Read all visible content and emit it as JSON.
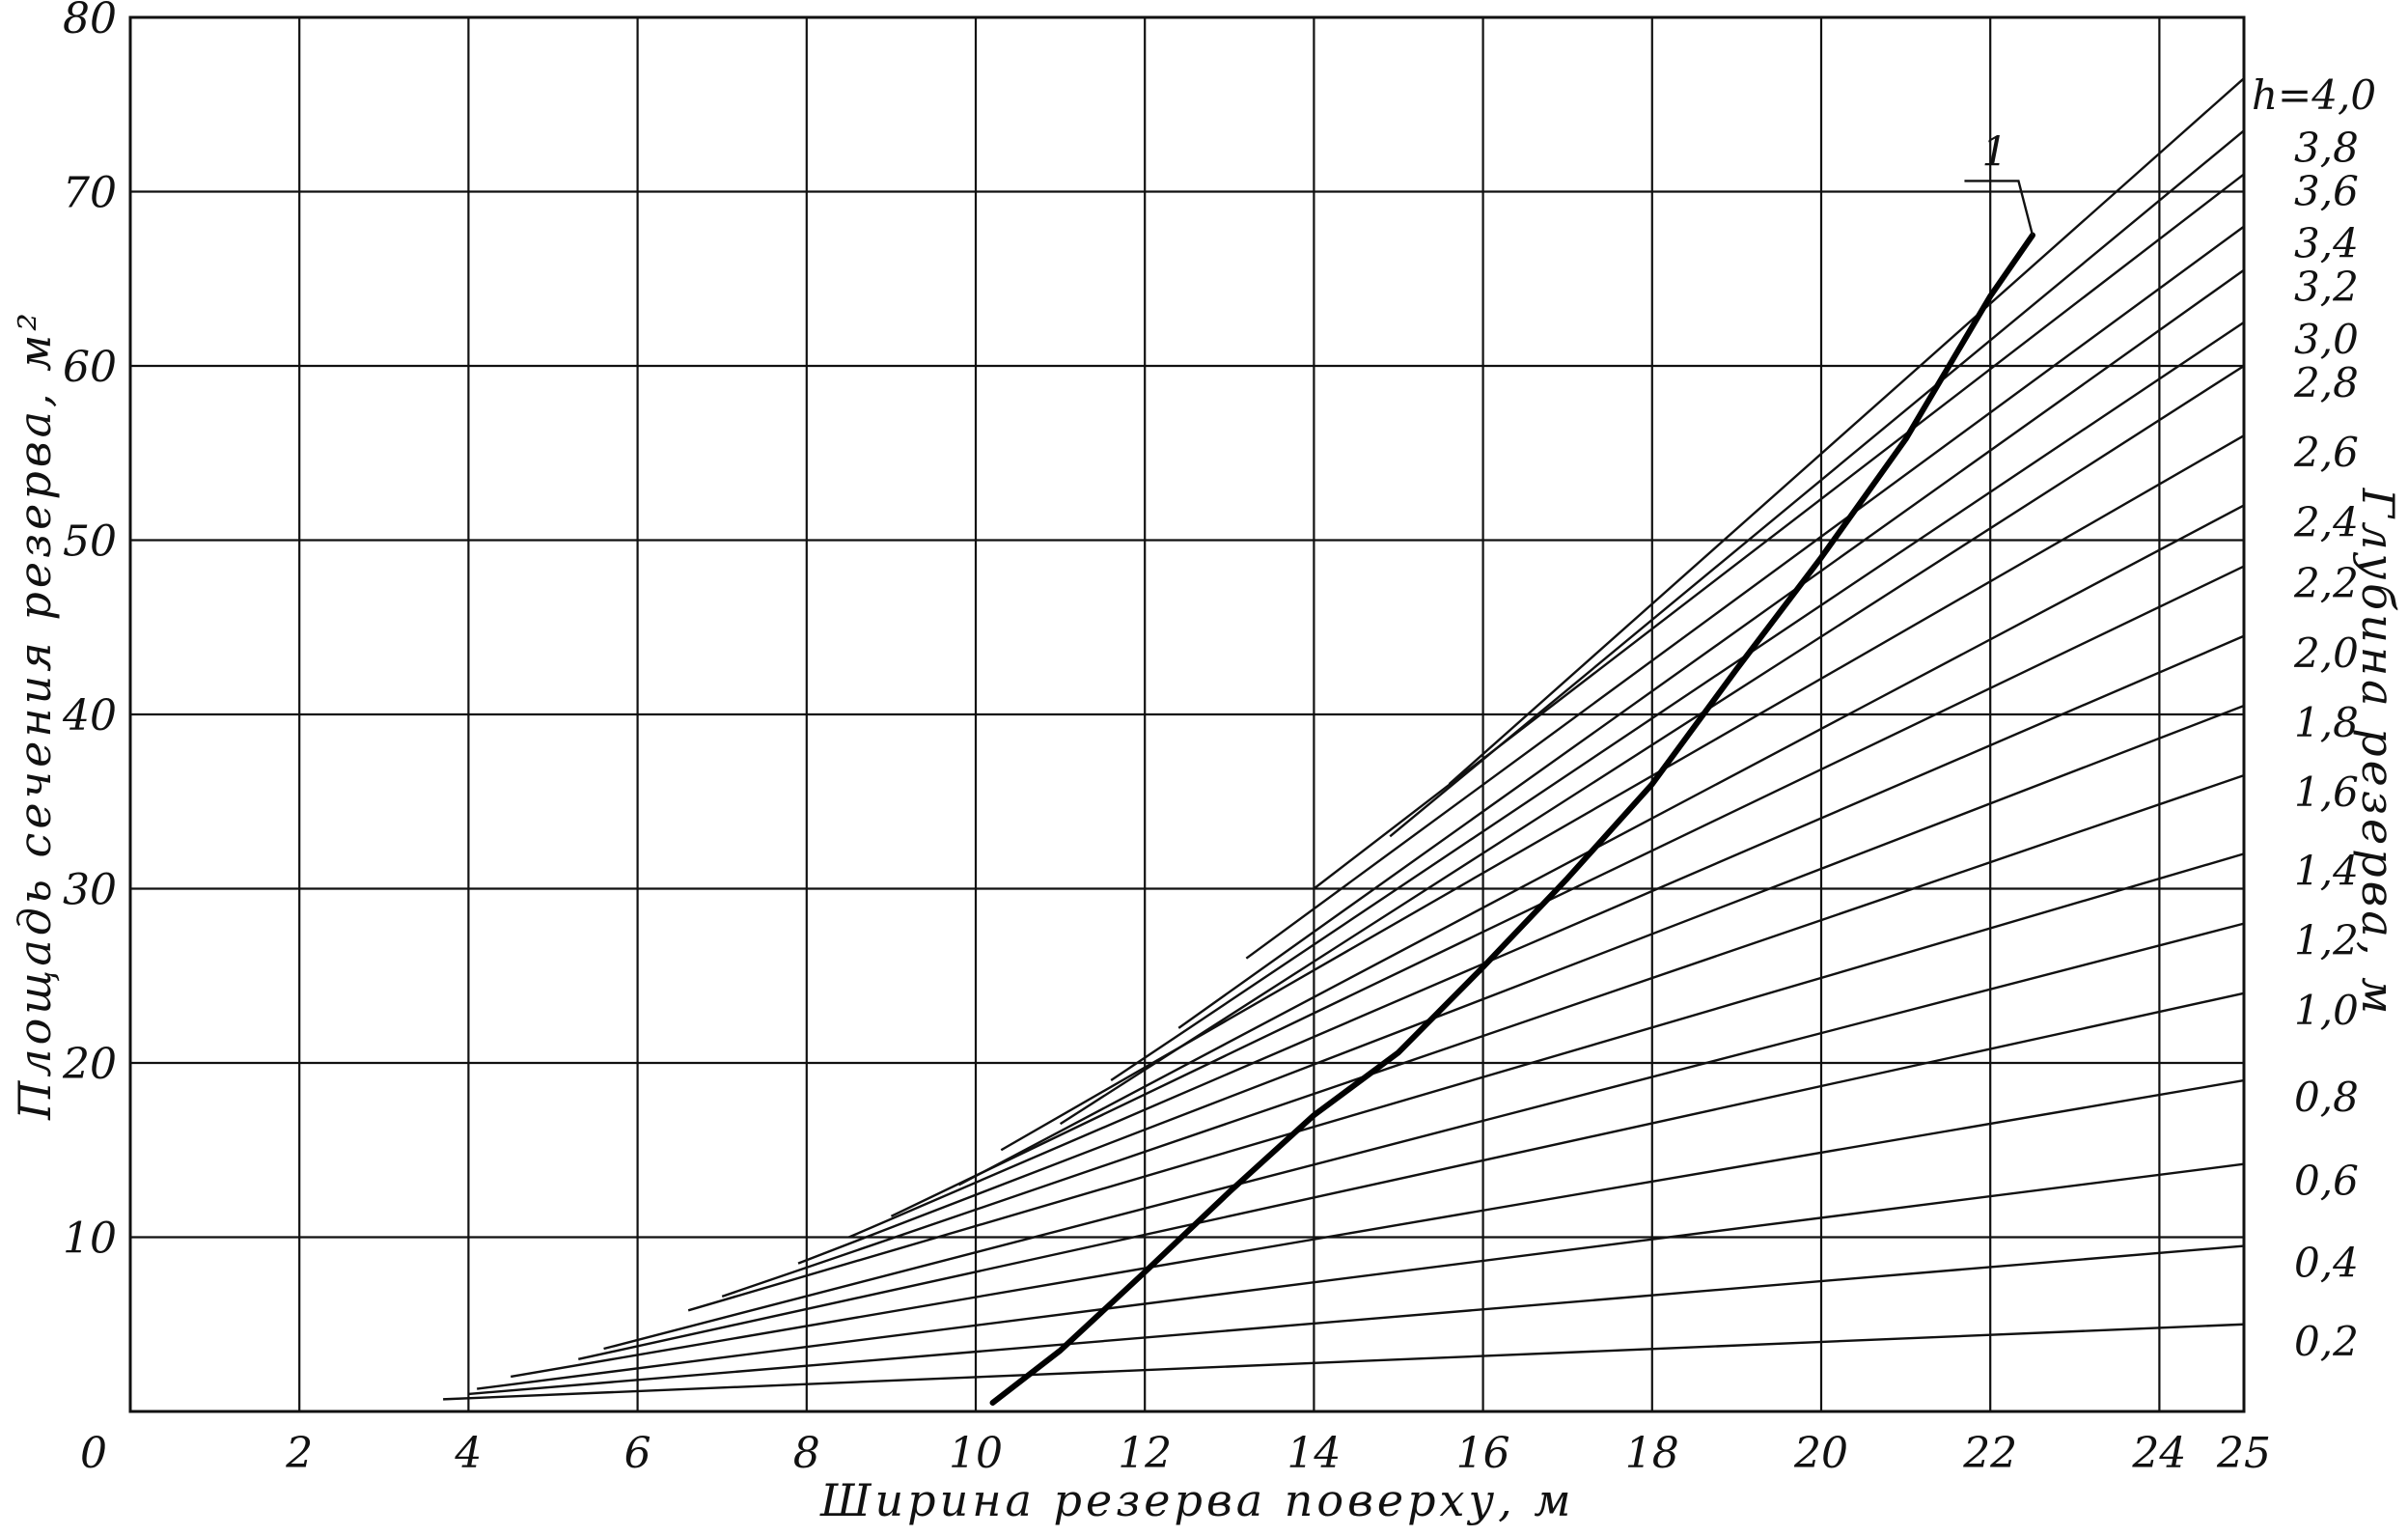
{
  "chart_data": {
    "type": "line",
    "xlabel": "Ширина резерва поверху, м",
    "ylabel": "Площадь сечения резерва, м²",
    "y2label": "Глубина резерва, м",
    "xlim": [
      0,
      25
    ],
    "ylim": [
      0,
      80
    ],
    "x_ticks": [
      0,
      2,
      4,
      6,
      8,
      10,
      12,
      14,
      16,
      18,
      20,
      22,
      24,
      25
    ],
    "x_tick_labels": [
      "0",
      "2",
      "4",
      "6",
      "8",
      "10",
      "12",
      "14",
      "16",
      "18",
      "20",
      "22",
      "24",
      "25"
    ],
    "y_ticks": [
      10,
      20,
      30,
      40,
      50,
      60,
      70,
      80
    ],
    "y_tick_labels": [
      "10",
      "20",
      "30",
      "40",
      "50",
      "60",
      "70",
      "80"
    ],
    "grid": true,
    "series": [
      {
        "name": "0,2",
        "h": 0.2,
        "points": [
          [
            3.7,
            0.7
          ],
          [
            25,
            5.0
          ]
        ]
      },
      {
        "name": "0,4",
        "h": 0.4,
        "points": [
          [
            4.0,
            1.0
          ],
          [
            25,
            9.5
          ]
        ]
      },
      {
        "name": "0,6",
        "h": 0.6,
        "points": [
          [
            4.1,
            1.3
          ],
          [
            25,
            14.2
          ]
        ]
      },
      {
        "name": "0,8",
        "h": 0.8,
        "points": [
          [
            4.5,
            2.0
          ],
          [
            25,
            19.0
          ]
        ]
      },
      {
        "name": "1,0",
        "h": 1.0,
        "points": [
          [
            5.3,
            3.0
          ],
          [
            25,
            24.0
          ]
        ]
      },
      {
        "name": "1,2",
        "h": 1.2,
        "points": [
          [
            5.6,
            3.6
          ],
          [
            25,
            28.0
          ]
        ]
      },
      {
        "name": "1,4",
        "h": 1.4,
        "points": [
          [
            6.6,
            5.8
          ],
          [
            25,
            32.0
          ]
        ]
      },
      {
        "name": "1,6",
        "h": 1.6,
        "points": [
          [
            7.0,
            6.6
          ],
          [
            25,
            36.5
          ]
        ]
      },
      {
        "name": "1,8",
        "h": 1.8,
        "points": [
          [
            7.9,
            8.5
          ],
          [
            25,
            40.5
          ]
        ]
      },
      {
        "name": "2,0",
        "h": 2.0,
        "points": [
          [
            8.5,
            10.0
          ],
          [
            25,
            44.5
          ]
        ]
      },
      {
        "name": "2,2",
        "h": 2.2,
        "points": [
          [
            9.0,
            11.2
          ],
          [
            25,
            48.5
          ]
        ]
      },
      {
        "name": "2,4",
        "h": 2.4,
        "points": [
          [
            9.8,
            13.0
          ],
          [
            25,
            52.0
          ]
        ]
      },
      {
        "name": "2,6",
        "h": 2.6,
        "points": [
          [
            10.3,
            15.0
          ],
          [
            25,
            56.0
          ]
        ]
      },
      {
        "name": "2,8",
        "h": 2.8,
        "points": [
          [
            11.0,
            16.5
          ],
          [
            25,
            60.0
          ]
        ]
      },
      {
        "name": "3,0",
        "h": 3.0,
        "points": [
          [
            11.6,
            19.0
          ],
          [
            25,
            62.5
          ]
        ]
      },
      {
        "name": "3,2",
        "h": 3.2,
        "points": [
          [
            12.4,
            22.0
          ],
          [
            25,
            65.5
          ]
        ]
      },
      {
        "name": "3,4",
        "h": 3.4,
        "points": [
          [
            13.2,
            26.0
          ],
          [
            25,
            68.0
          ]
        ]
      },
      {
        "name": "3,6",
        "h": 3.6,
        "points": [
          [
            14.0,
            30.0
          ],
          [
            25,
            71.0
          ]
        ]
      },
      {
        "name": "3,8",
        "h": 3.8,
        "points": [
          [
            14.9,
            33.0
          ],
          [
            25,
            73.5
          ]
        ]
      },
      {
        "name": "h=4,0",
        "h": 4.0,
        "points": [
          [
            15.6,
            36.0
          ],
          [
            25,
            76.5
          ]
        ]
      }
    ],
    "curve": {
      "name": "1",
      "points": [
        [
          10.2,
          0.5
        ],
        [
          11.0,
          3.5
        ],
        [
          12.0,
          8.0
        ],
        [
          13.0,
          12.6
        ],
        [
          14.0,
          17.0
        ],
        [
          15.0,
          20.6
        ],
        [
          16.0,
          25.5
        ],
        [
          17.0,
          30.6
        ],
        [
          18.0,
          36.0
        ],
        [
          19.0,
          42.6
        ],
        [
          20.0,
          49.0
        ],
        [
          21.0,
          55.8
        ],
        [
          22.0,
          64.0
        ],
        [
          22.5,
          67.5
        ]
      ]
    },
    "curve_label": "1",
    "curve_label_pos": [
      21.9,
      71.5
    ]
  }
}
